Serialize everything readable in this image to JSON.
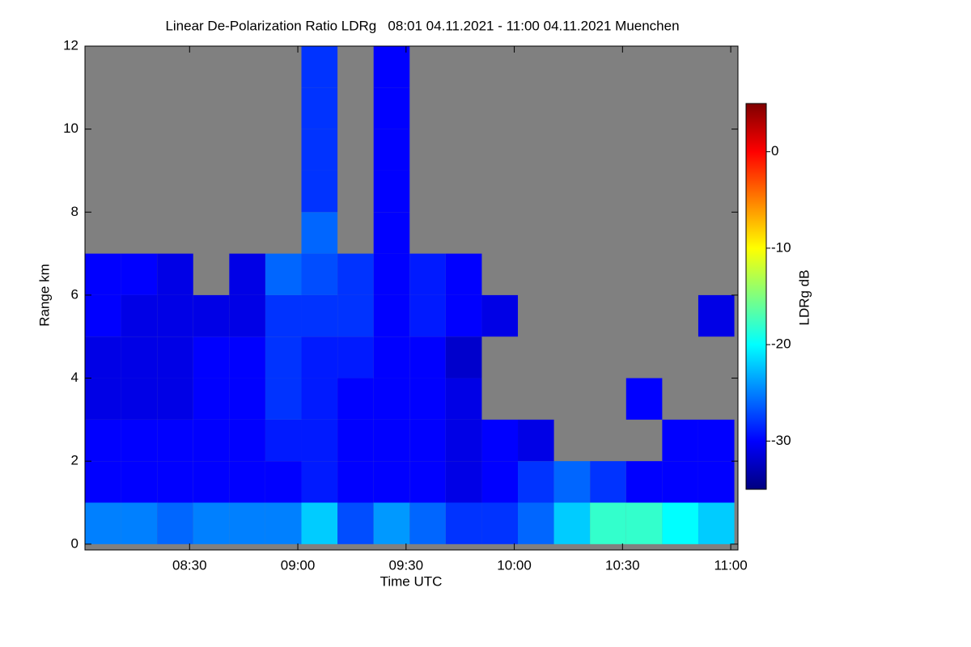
{
  "chart_data": {
    "type": "heatmap",
    "title": "Linear De-Polarization Ratio LDRg   08:01 04.11.2021 - 11:00 04.11.2021 Muenchen",
    "xlabel": "Time UTC",
    "ylabel": "Range km",
    "colorbar_label": "LDRg dB",
    "colormap": "jet",
    "missing_color": "#808080",
    "xlim": [
      "08:01",
      "11:02"
    ],
    "xticks": [
      "08:30",
      "09:00",
      "09:30",
      "10:00",
      "10:30",
      "11:00"
    ],
    "ylim": [
      -0.14,
      12
    ],
    "yticks": [
      0,
      2,
      4,
      6,
      8,
      10,
      12
    ],
    "zlim": [
      -35,
      5
    ],
    "zticks": [
      0,
      -10,
      -20,
      -30
    ],
    "x": [
      "08:06",
      "08:16",
      "08:26",
      "08:36",
      "08:46",
      "08:56",
      "09:06",
      "09:16",
      "09:26",
      "09:36",
      "09:46",
      "09:56",
      "10:06",
      "10:16",
      "10:26",
      "10:36",
      "10:46",
      "10:56"
    ],
    "y": [
      0.5,
      1.5,
      2.5,
      3.5,
      4.5,
      5.5,
      6.5,
      7.5,
      8.5,
      9.5,
      10.5,
      11.5
    ],
    "values": [
      [
        -25,
        -30,
        -30,
        -31,
        -31,
        -30,
        -30,
        null,
        null,
        null,
        null,
        null
      ],
      [
        -25,
        -30,
        -30,
        -31,
        -31,
        -31,
        -30,
        null,
        null,
        null,
        null,
        null
      ],
      [
        -26,
        -30,
        -30,
        -31,
        -31,
        -31,
        -31,
        null,
        null,
        null,
        null,
        null
      ],
      [
        -25,
        -30,
        -30,
        -30,
        -30,
        -31,
        null,
        null,
        null,
        null,
        null,
        null
      ],
      [
        -25,
        -30,
        -30,
        -30,
        -30,
        -31,
        -31,
        null,
        null,
        null,
        null,
        null
      ],
      [
        -25,
        -30,
        -29,
        -28,
        -28,
        -28,
        -26,
        null,
        null,
        null,
        null,
        null
      ],
      [
        -22,
        -29,
        -29,
        -29,
        -29,
        -28,
        -27,
        -26,
        -28,
        -28,
        -28,
        -28
      ],
      [
        -27,
        -30,
        -30,
        -30,
        -29,
        -28,
        -28,
        null,
        null,
        null,
        null,
        null
      ],
      [
        -24,
        -30,
        -30,
        -30,
        -30,
        -30,
        -30,
        -30,
        -30,
        -30,
        -30,
        -30
      ],
      [
        -26,
        -30,
        -30,
        -30,
        -30,
        -29,
        -29,
        null,
        null,
        null,
        null,
        null
      ],
      [
        -28,
        -31,
        -31,
        -31,
        -32,
        -30,
        -30,
        null,
        null,
        null,
        null,
        null
      ],
      [
        -28,
        -30,
        -30,
        null,
        null,
        -31,
        null,
        null,
        null,
        null,
        null,
        null
      ],
      [
        -26,
        -28,
        -31,
        null,
        null,
        null,
        null,
        null,
        null,
        null,
        null,
        null
      ],
      [
        -22,
        -26,
        null,
        null,
        null,
        null,
        null,
        null,
        null,
        null,
        null,
        null
      ],
      [
        -18,
        -28,
        null,
        null,
        null,
        null,
        null,
        null,
        null,
        null,
        null,
        null
      ],
      [
        -18,
        -30,
        null,
        -30,
        null,
        null,
        null,
        null,
        null,
        null,
        null,
        null
      ],
      [
        -20,
        -30,
        -30,
        null,
        null,
        null,
        null,
        null,
        null,
        null,
        null,
        null
      ],
      [
        -22,
        -30,
        -30,
        null,
        null,
        -31,
        null,
        null,
        null,
        null,
        null,
        null
      ]
    ]
  }
}
